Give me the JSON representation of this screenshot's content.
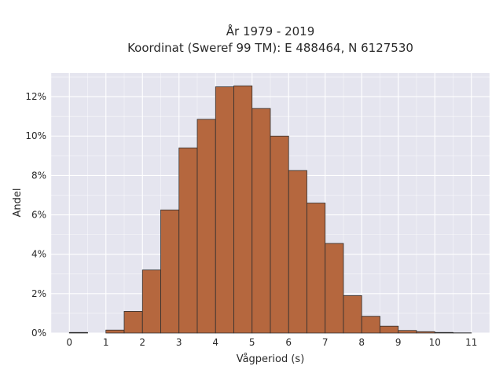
{
  "chart_data": {
    "type": "bar",
    "title": [
      "År 1979 - 2019",
      "Koordinat (Sweref 99 TM): E 488464, N 6127530"
    ],
    "xlabel": "Vågperiod (s)",
    "ylabel": "Andel",
    "xlim": [
      -0.5,
      11.5
    ],
    "ylim": [
      0,
      13.2
    ],
    "x_ticks": [
      0,
      1,
      2,
      3,
      4,
      5,
      6,
      7,
      8,
      9,
      10,
      11
    ],
    "y_ticks": [
      0,
      2,
      4,
      6,
      8,
      10,
      12
    ],
    "y_tick_labels": [
      "0%",
      "2%",
      "4%",
      "6%",
      "8%",
      "10%",
      "12%"
    ],
    "bin_width": 0.5,
    "bins": [
      {
        "start": 0.0,
        "end": 0.5,
        "value": 0.03
      },
      {
        "start": 0.5,
        "end": 1.0,
        "value": 0.0
      },
      {
        "start": 1.0,
        "end": 1.5,
        "value": 0.15
      },
      {
        "start": 1.5,
        "end": 2.0,
        "value": 1.1
      },
      {
        "start": 2.0,
        "end": 2.5,
        "value": 3.2
      },
      {
        "start": 2.5,
        "end": 3.0,
        "value": 6.25
      },
      {
        "start": 3.0,
        "end": 3.5,
        "value": 9.4
      },
      {
        "start": 3.5,
        "end": 4.0,
        "value": 10.85
      },
      {
        "start": 4.0,
        "end": 4.5,
        "value": 12.5
      },
      {
        "start": 4.5,
        "end": 5.0,
        "value": 12.55
      },
      {
        "start": 5.0,
        "end": 5.5,
        "value": 11.4
      },
      {
        "start": 5.5,
        "end": 6.0,
        "value": 10.0
      },
      {
        "start": 6.0,
        "end": 6.5,
        "value": 8.25
      },
      {
        "start": 6.5,
        "end": 7.0,
        "value": 6.6
      },
      {
        "start": 7.0,
        "end": 7.5,
        "value": 4.55
      },
      {
        "start": 7.5,
        "end": 8.0,
        "value": 1.9
      },
      {
        "start": 8.0,
        "end": 8.5,
        "value": 0.85
      },
      {
        "start": 8.5,
        "end": 9.0,
        "value": 0.35
      },
      {
        "start": 9.0,
        "end": 9.5,
        "value": 0.13
      },
      {
        "start": 9.5,
        "end": 10.0,
        "value": 0.07
      },
      {
        "start": 10.0,
        "end": 10.5,
        "value": 0.03
      },
      {
        "start": 10.5,
        "end": 11.0,
        "value": 0.01
      }
    ],
    "grid": true,
    "colors": {
      "bar_fill": "#b5673e",
      "bar_edge": "#2f2f2f",
      "plot_bg": "#e5e5ef",
      "grid": "#ffffff",
      "text": "#2a2a2a"
    }
  }
}
